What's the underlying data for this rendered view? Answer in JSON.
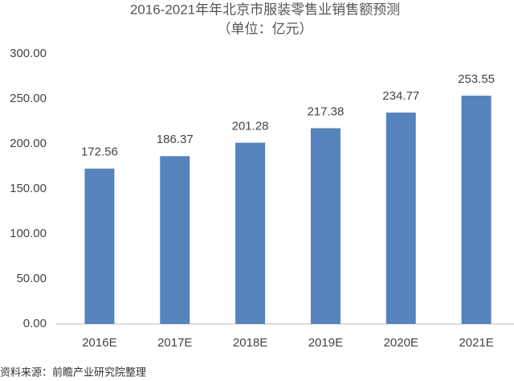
{
  "chart_data": {
    "type": "bar",
    "title": "2016-2021年年北京市服装零售业销售额预测",
    "subtitle": "（单位：亿元）",
    "source": "资料来源：前瞻产业研究院整理",
    "categories": [
      "2016E",
      "2017E",
      "2018E",
      "2019E",
      "2020E",
      "2021E"
    ],
    "values": [
      172.56,
      186.37,
      201.28,
      217.38,
      234.77,
      253.55
    ],
    "color": "#5683bb",
    "ylim": [
      0,
      300
    ],
    "yticks": [
      {
        "value": 0,
        "label": "0.00"
      },
      {
        "value": 50,
        "label": "50.00"
      },
      {
        "value": 100,
        "label": "100.00"
      },
      {
        "value": 150,
        "label": "150.00"
      },
      {
        "value": 200,
        "label": "200.00"
      },
      {
        "value": 250,
        "label": "250.00"
      },
      {
        "value": 300,
        "label": "300.00"
      }
    ],
    "grid": false
  }
}
